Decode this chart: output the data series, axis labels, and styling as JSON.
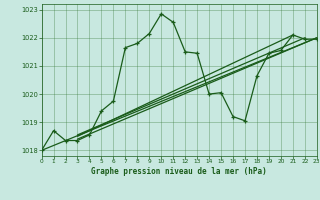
{
  "title": "Graphe pression niveau de la mer (hPa)",
  "background_color": "#c8e8e0",
  "line_color": "#1a5c1a",
  "grid_color": "#3a7a3a",
  "xlim": [
    0,
    23
  ],
  "ylim": [
    1017.8,
    1023.2
  ],
  "yticks": [
    1018,
    1019,
    1020,
    1021,
    1022,
    1023
  ],
  "xticks": [
    0,
    1,
    2,
    3,
    4,
    5,
    6,
    7,
    8,
    9,
    10,
    11,
    12,
    13,
    14,
    15,
    16,
    17,
    18,
    19,
    20,
    21,
    22,
    23
  ],
  "main_x": [
    0,
    1,
    2,
    3,
    4,
    5,
    6,
    7,
    8,
    9,
    10,
    11,
    12,
    13,
    14,
    15,
    16,
    17,
    18,
    19,
    20,
    21,
    22,
    23
  ],
  "main_y": [
    1018.0,
    1018.7,
    1018.35,
    1018.35,
    1018.55,
    1019.4,
    1019.75,
    1021.65,
    1021.8,
    1022.15,
    1022.85,
    1022.55,
    1021.5,
    1021.45,
    1020.0,
    1020.05,
    1019.2,
    1019.05,
    1020.65,
    1021.45,
    1021.55,
    1022.1,
    1021.95,
    1021.95
  ],
  "trend_lines": [
    {
      "x": [
        0,
        23
      ],
      "y": [
        1018.0,
        1022.0
      ]
    },
    {
      "x": [
        3,
        23
      ],
      "y": [
        1018.4,
        1022.0
      ]
    },
    {
      "x": [
        3,
        21
      ],
      "y": [
        1018.5,
        1022.1
      ]
    },
    {
      "x": [
        3,
        22
      ],
      "y": [
        1018.55,
        1022.0
      ]
    }
  ]
}
